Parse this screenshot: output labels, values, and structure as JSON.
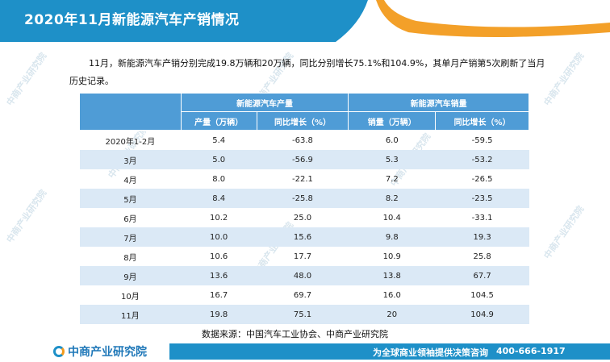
{
  "header": {
    "title": "2020年11月新能源汽车产销情况"
  },
  "intro": {
    "text": "11月，新能源汽车产销分别完成19.8万辆和20万辆，同比分别增长75.1%和104.9%，其单月产销第5次刷新了当月历史记录。"
  },
  "table": {
    "group_headers": [
      "新能源汽车产量",
      "新能源汽车销量"
    ],
    "sub_headers": [
      "产量（万辆）",
      "同比增长（%）",
      "销量（万辆）",
      "同比增长（%）"
    ],
    "rows": [
      [
        "2020年1-2月",
        "5.4",
        "-63.8",
        "6.0",
        "-59.5"
      ],
      [
        "3月",
        "5.0",
        "-56.9",
        "5.3",
        "-53.2"
      ],
      [
        "4月",
        "8.0",
        "-22.1",
        "7.2",
        "-26.5"
      ],
      [
        "5月",
        "8.4",
        "-25.8",
        "8.2",
        "-23.5"
      ],
      [
        "6月",
        "10.2",
        "25.0",
        "10.4",
        "-33.1"
      ],
      [
        "7月",
        "10.0",
        "15.6",
        "9.8",
        "19.3"
      ],
      [
        "8月",
        "10.6",
        "17.7",
        "10.9",
        "25.8"
      ],
      [
        "9月",
        "13.6",
        "48.0",
        "13.8",
        "67.7"
      ],
      [
        "10月",
        "16.7",
        "69.7",
        "16.0",
        "104.5"
      ],
      [
        "11月",
        "19.8",
        "75.1",
        "20",
        "104.9"
      ]
    ]
  },
  "source": "数据来源：中国汽车工业协会、中商产业研究院",
  "footer": {
    "logo_text": "中商产业研究院",
    "tagline": "为全球商业领袖提供决策咨询",
    "phone": "400-666-1917"
  },
  "watermark_text": "中商产业研究院",
  "colors": {
    "brand_blue": "#1e90c8",
    "header_cell": "#4f9cd6",
    "alt_row": "#dbe9f6",
    "accent_orange": "#f29b1d"
  }
}
